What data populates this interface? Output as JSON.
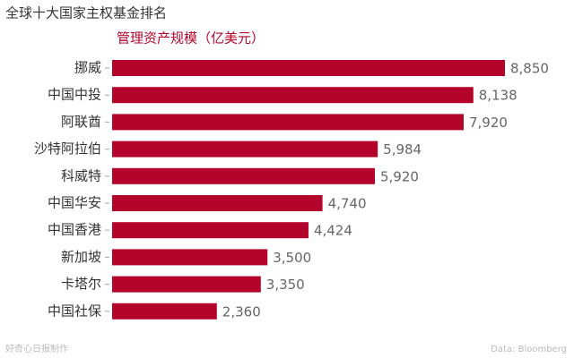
{
  "chart_data": {
    "type": "bar",
    "orientation": "horizontal",
    "title": "全球十大国家主权基金排名",
    "subtitle": "管理资产规模（亿美元）",
    "categories": [
      "挪威",
      "中国中投",
      "阿联酋",
      "沙特阿拉伯",
      "科威特",
      "中国华安",
      "中国香港",
      "新加坡",
      "卡塔尔",
      "中国社保"
    ],
    "values": [
      8850,
      8138,
      7920,
      5984,
      5920,
      4740,
      4424,
      3500,
      3350,
      2360
    ],
    "value_labels": [
      "8,850",
      "8,138",
      "7,920",
      "5,984",
      "5,920",
      "4,740",
      "4,424",
      "3,500",
      "3,350",
      "2,360"
    ],
    "color": "#b4042c",
    "credit": "好奇心日报制作",
    "source": "Data: Bloomberg"
  }
}
